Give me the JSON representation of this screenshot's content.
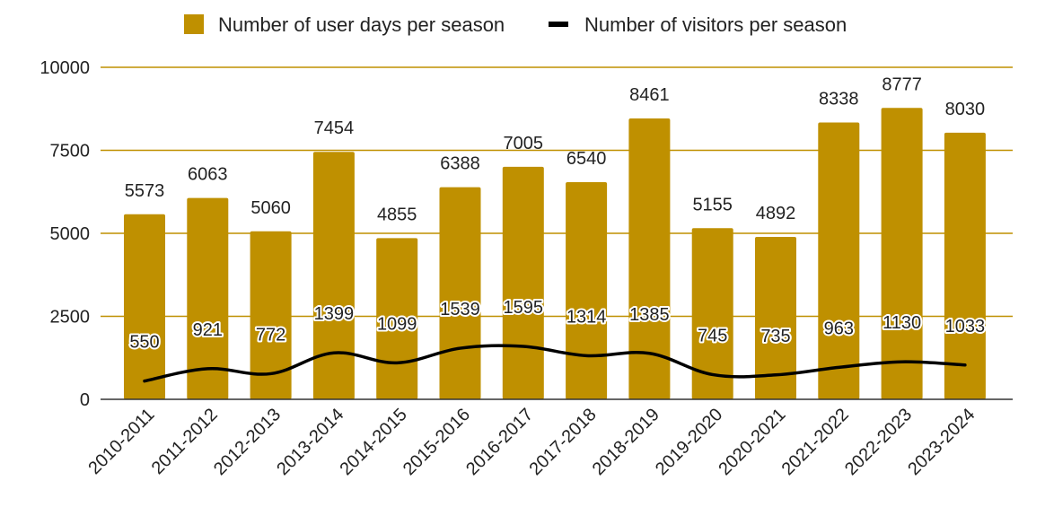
{
  "chart_data": {
    "type": "bar",
    "title": "",
    "xlabel": "",
    "ylabel": "",
    "ylim": [
      0,
      10000
    ],
    "yticks": [
      0,
      2500,
      5000,
      7500,
      10000
    ],
    "legend_position": "top-center",
    "categories": [
      "2010-2011",
      "2011-2012",
      "2012-2013",
      "2013-2014",
      "2014-2015",
      "2015-2016",
      "2016-2017",
      "2017-2018",
      "2018-2019",
      "2019-2020",
      "2020-2021",
      "2021-2022",
      "2022-2023",
      "2023-2024"
    ],
    "series": [
      {
        "name": "Number of user days per season",
        "type": "bar",
        "color": "#BF9000",
        "values": [
          5573,
          6063,
          5060,
          7454,
          4855,
          6388,
          7005,
          6540,
          8461,
          5155,
          4892,
          8338,
          8777,
          8030
        ]
      },
      {
        "name": "Number of visitors per season",
        "type": "line",
        "color": "#000000",
        "values": [
          550,
          921,
          772,
          1399,
          1099,
          1539,
          1595,
          1314,
          1385,
          745,
          735,
          963,
          1130,
          1033
        ]
      }
    ]
  }
}
